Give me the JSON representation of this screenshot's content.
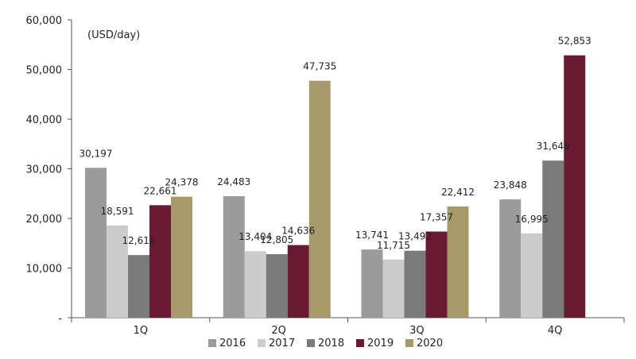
{
  "chart_data": {
    "type": "bar",
    "title": "",
    "unit": "(USD/day)",
    "xlabel": "",
    "ylabel": "",
    "categories": [
      "1Q",
      "2Q",
      "3Q",
      "4Q"
    ],
    "series": [
      {
        "name": "2016",
        "color": "#9b9b9b",
        "values": [
          30197,
          24483,
          13741,
          23848
        ]
      },
      {
        "name": "2017",
        "color": "#cccccc",
        "values": [
          18591,
          13404,
          11715,
          16995
        ]
      },
      {
        "name": "2018",
        "color": "#7a7a7a",
        "values": [
          12616,
          12805,
          13492,
          31646
        ]
      },
      {
        "name": "2019",
        "color": "#6b1a33",
        "values": [
          22661,
          14636,
          17357,
          52853
        ]
      },
      {
        "name": "2020",
        "color": "#a8996a",
        "values": [
          24378,
          47735,
          22412,
          null
        ]
      }
    ],
    "ylim": [
      0,
      60000
    ],
    "yticks": [
      0,
      10000,
      20000,
      30000,
      40000,
      50000,
      60000
    ],
    "ytick_labels": [
      "-",
      "10,000",
      "20,000",
      "30,000",
      "40,000",
      "50,000",
      "60,000"
    ],
    "grid": false,
    "legend_position": "bottom"
  }
}
